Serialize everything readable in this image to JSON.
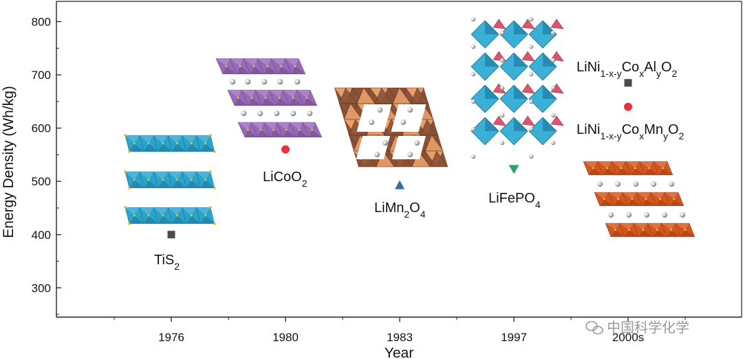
{
  "chart_data": {
    "type": "scatter",
    "xlabel": "Year",
    "ylabel": "Energy Density (Wh/kg)",
    "categories": [
      "1976",
      "1980",
      "1983",
      "1997",
      "2000s"
    ],
    "yticks": [
      300,
      400,
      500,
      600,
      700,
      800
    ],
    "ylim": [
      245,
      838
    ],
    "points": [
      {
        "category": "1976",
        "value": 400,
        "label_main": "TiS",
        "label_sub": "2",
        "marker": "square",
        "color": "#4a4a4a"
      },
      {
        "category": "1980",
        "value": 560,
        "label_main": "LiCoO",
        "label_sub": "2",
        "marker": "circle",
        "color": "#e8333a"
      },
      {
        "category": "1983",
        "value": 493,
        "label_main": "LiMn",
        "label_sub": "2",
        "label_main2": "O",
        "label_sub2": "4",
        "marker": "triangle-up",
        "color": "#2f6fa8"
      },
      {
        "category": "1997",
        "value": 523,
        "label_main": "LiFePO",
        "label_sub": "4",
        "marker": "triangle-down",
        "color": "#2aa36b"
      },
      {
        "category": "2000s",
        "value": 685,
        "label": "LiNi1-x-yCoxAlyO2",
        "marker": "square",
        "color": "#4a4a4a"
      },
      {
        "category": "2000s",
        "value": 640,
        "label": "LiNi1-x-yCoxMnyO2",
        "marker": "circle",
        "color": "#e8333a"
      }
    ],
    "grid": false,
    "watermark": "中国科学化学"
  },
  "colors": {
    "tis2": "#2aa3cc",
    "licoo2": "#9a68b8",
    "limn2o4_dark": "#8a5236",
    "limn2o4_light": "#e8a06a",
    "lifepo4_blue": "#3ab0d6",
    "lifepo4_pink": "#d9566e",
    "nmc": "#d4551e"
  }
}
